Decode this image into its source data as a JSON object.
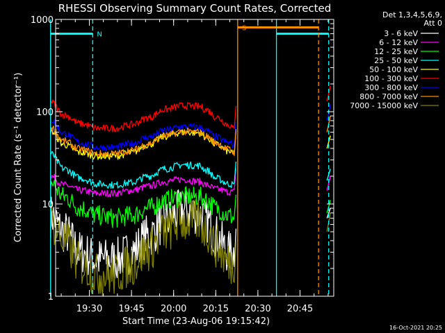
{
  "chart_data": {
    "type": "line",
    "title": "RHESSI Observing Summary Count Rates, Corrected",
    "ylabel": "Corrected Count Rate (s⁻¹ detector⁻¹)",
    "xlabel": "Start Time (23-Aug-06 19:15:42)",
    "y_scale": "log",
    "ylim": [
      1,
      1000
    ],
    "xlim_minutes": [
      19.3,
      20.95
    ],
    "y_ticks": [
      {
        "v": 1,
        "label": "1"
      },
      {
        "v": 10,
        "label": "10"
      },
      {
        "v": 100,
        "label": "100"
      },
      {
        "v": 1000,
        "label": "1000"
      }
    ],
    "x_ticks": [
      {
        "v": 19.5,
        "label": "19:30"
      },
      {
        "v": 19.75,
        "label": "19:45"
      },
      {
        "v": 20.0,
        "label": "20:00"
      },
      {
        "v": 20.25,
        "label": "20:15"
      },
      {
        "v": 20.5,
        "label": "20:30"
      },
      {
        "v": 20.75,
        "label": "20:45"
      }
    ],
    "legend_header": [
      "Det 1,3,4,5,6,9,",
      "Att 0"
    ],
    "legend_placement": "right",
    "x": [
      19.27,
      19.35,
      19.45,
      19.55,
      19.65,
      19.75,
      19.85,
      19.95,
      20.05,
      20.15,
      20.2,
      20.25,
      20.33,
      20.36
    ],
    "series": [
      {
        "name": "3 - 6 keV",
        "color": "#ffffff",
        "values": [
          7.5,
          5,
          3,
          2.5,
          2.5,
          3,
          4.5,
          6.5,
          8.5,
          8,
          6.5,
          4.5,
          3,
          3
        ]
      },
      {
        "name": "6 - 12 keV",
        "color": "#ff00ff",
        "values": [
          20,
          16,
          14,
          13,
          13,
          14,
          15.5,
          17.5,
          18.5,
          17.5,
          16,
          14.5,
          13.5,
          13.5
        ]
      },
      {
        "name": "12 - 25 keV",
        "color": "#00ff00",
        "values": [
          17,
          12,
          9,
          7.5,
          7,
          7.5,
          9,
          11,
          12,
          12,
          11,
          9,
          7.5,
          7
        ]
      },
      {
        "name": "25 - 50 keV",
        "color": "#00ffff",
        "values": [
          35,
          24,
          19,
          16.5,
          16,
          17,
          20,
          24,
          26.5,
          26,
          23,
          19,
          16.5,
          16
        ]
      },
      {
        "name": "50 - 100 keV",
        "color": "#ffff00",
        "values": [
          62,
          44,
          36,
          33,
          33,
          36,
          44,
          54,
          60,
          59,
          52,
          44,
          37,
          34
        ]
      },
      {
        "name": "100 - 300 keV",
        "color": "#ff0000",
        "values": [
          128,
          92,
          74,
          66,
          66,
          72,
          86,
          106,
          116,
          114,
          104,
          88,
          72,
          64
        ]
      },
      {
        "name": "300 - 800 keV",
        "color": "#0000ff",
        "values": [
          82,
          58,
          46,
          41,
          41,
          45,
          53,
          63,
          69,
          68,
          62,
          53,
          46,
          43
        ]
      },
      {
        "name": "800 - 7000 keV",
        "color": "#ff8c00",
        "values": [
          68,
          48,
          39,
          35,
          35,
          38,
          45,
          55,
          61,
          60,
          54,
          46,
          39,
          36
        ]
      },
      {
        "name": "7000 - 15000 keV",
        "color": "#808000",
        "values": [
          6.5,
          4,
          2.2,
          1.7,
          1.7,
          2.2,
          3.2,
          5,
          6.5,
          6.5,
          5,
          3.5,
          2.3,
          2.2
        ]
      }
    ],
    "tail_x": [
      20.91,
      20.93
    ],
    "tail_values": [
      [
        7,
        9
      ],
      [
        14,
        20
      ],
      [
        8,
        11
      ],
      [
        18,
        24
      ],
      [
        40,
        55
      ],
      [
        130,
        190
      ],
      [
        80,
        120
      ],
      [
        60,
        90
      ],
      [
        5,
        8
      ]
    ],
    "night_bars": [
      {
        "x0": 19.27,
        "x1": 19.52,
        "y": 700
      },
      {
        "x0": 20.61,
        "x1": 20.92,
        "y": 700
      }
    ],
    "saa_bars": [
      {
        "x0": 20.38,
        "x1": 20.86,
        "y": 820
      }
    ],
    "events": [
      {
        "type": "solid",
        "x": 19.27,
        "color": "#00ffff"
      },
      {
        "type": "dashed",
        "x": 19.52,
        "color": "#00ffff"
      },
      {
        "type": "solid",
        "x": 20.38,
        "color": "#ff8c00"
      },
      {
        "type": "solid",
        "x": 20.61,
        "color": "#00ffff"
      },
      {
        "type": "dashed",
        "x": 20.86,
        "color": "#ff8c00"
      },
      {
        "type": "dashed",
        "x": 20.92,
        "color": "#00ffff"
      }
    ],
    "annotations": [
      {
        "text": "N",
        "x": 19.52,
        "y": 700,
        "color": "#00ffff"
      },
      {
        "text": "S",
        "x": 20.38,
        "y": 820,
        "color": "#ff8c00"
      }
    ],
    "footer": "16-Oct-2021 20:25"
  }
}
